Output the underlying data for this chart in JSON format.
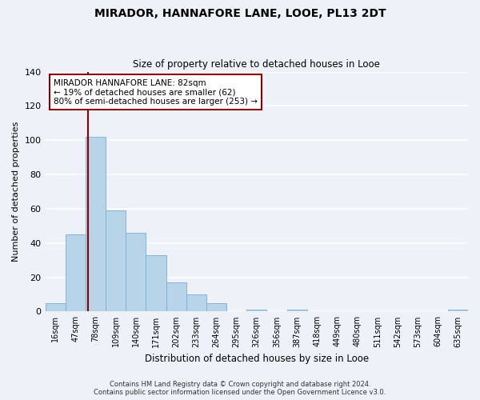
{
  "title": "MIRADOR, HANNAFORE LANE, LOOE, PL13 2DT",
  "subtitle": "Size of property relative to detached houses in Looe",
  "xlabel": "Distribution of detached houses by size in Looe",
  "ylabel": "Number of detached properties",
  "bin_labels": [
    "16sqm",
    "47sqm",
    "78sqm",
    "109sqm",
    "140sqm",
    "171sqm",
    "202sqm",
    "233sqm",
    "264sqm",
    "295sqm",
    "326sqm",
    "356sqm",
    "387sqm",
    "418sqm",
    "449sqm",
    "480sqm",
    "511sqm",
    "542sqm",
    "573sqm",
    "604sqm",
    "635sqm"
  ],
  "bar_values": [
    5,
    45,
    102,
    59,
    46,
    33,
    17,
    10,
    5,
    0,
    1,
    0,
    1,
    0,
    0,
    0,
    0,
    0,
    0,
    0,
    1
  ],
  "bar_color": "#b8d4e8",
  "bar_edgecolor": "#7aaed6",
  "ylim": [
    0,
    140
  ],
  "yticks": [
    0,
    20,
    40,
    60,
    80,
    100,
    120,
    140
  ],
  "property_line_color": "#8b0000",
  "annotation_line1": "MIRADOR HANNAFORE LANE: 82sqm",
  "annotation_line2": "← 19% of detached houses are smaller (62)",
  "annotation_line3": "80% of semi-detached houses are larger (253) →",
  "annotation_box_color": "#ffffff",
  "annotation_box_edgecolor": "#8b0000",
  "footer_line1": "Contains HM Land Registry data © Crown copyright and database right 2024.",
  "footer_line2": "Contains public sector information licensed under the Open Government Licence v3.0.",
  "background_color": "#eef2f8",
  "grid_color": "#ffffff",
  "fig_width": 6.0,
  "fig_height": 5.0,
  "dpi": 100
}
